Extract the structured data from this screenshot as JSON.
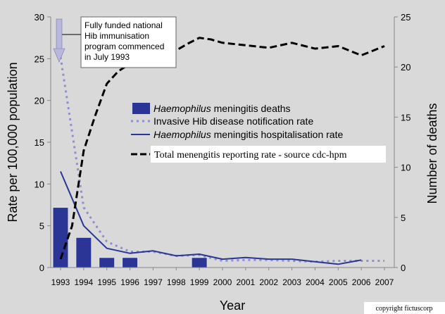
{
  "chart_data": {
    "type": "bar",
    "title": "",
    "xlabel": "Year",
    "ylabel_left": "Rate per 100,000 population",
    "ylabel_right": "Number of deaths",
    "ylim_left": [
      0,
      30
    ],
    "ylim_right": [
      0,
      25
    ],
    "yticks_left": [
      "0",
      "5",
      "10",
      "15",
      "20",
      "25",
      "30"
    ],
    "yticks_right": [
      "0",
      "5",
      "10",
      "15",
      "20",
      "25"
    ],
    "categories": [
      "1993",
      "1994",
      "1995",
      "1996",
      "1997",
      "1998",
      "1999",
      "2000",
      "2001",
      "2002",
      "2003",
      "2004",
      "2005",
      "2006",
      "2007"
    ],
    "grid": false,
    "legend_placement": "center-right",
    "annotation": [
      "Fully funded national",
      "Hib immunisation",
      "program commenced",
      "in July 1993"
    ],
    "copyright": "copyright fictuscorp",
    "series": [
      {
        "name": "Haemophilus meningitis deaths",
        "name_italic": "Haemophilus",
        "name_rest": " meningitis deaths",
        "kind": "bar",
        "axis": "right",
        "color": "#2b3596",
        "x": [
          "1993",
          "1994",
          "1995",
          "1996",
          "1999"
        ],
        "values": [
          6,
          3,
          1,
          1,
          1
        ]
      },
      {
        "name": "Invasive Hib disease notification rate",
        "kind": "line-dotted",
        "axis": "left",
        "color": "#8f8fd0",
        "x": [
          1993,
          1994,
          1995,
          1996,
          1997,
          1998,
          1999,
          2000,
          2001,
          2002,
          2003,
          2004,
          2005,
          2006,
          2007
        ],
        "values": [
          25.2,
          7.2,
          3.1,
          1.9,
          1.9,
          1.4,
          1.5,
          0.8,
          0.9,
          0.9,
          0.8,
          0.7,
          0.8,
          0.8,
          0.8
        ]
      },
      {
        "name": "Haemophilus meningitis hospitalisation rate",
        "name_italic": "Haemophilus",
        "name_rest": " meningitis hospitalisation rate",
        "kind": "line",
        "axis": "left",
        "color": "#2b3596",
        "x": [
          1993,
          1994,
          1995,
          1996,
          1997,
          1998,
          1999,
          2000,
          2001,
          2002,
          2003,
          2004,
          2005,
          2006
        ],
        "values": [
          11.5,
          5.0,
          2.3,
          1.7,
          2.0,
          1.4,
          1.6,
          1.0,
          1.2,
          1.0,
          1.0,
          0.7,
          0.4,
          0.9
        ]
      },
      {
        "name": "Total menengitis reporting rate - source cdc-hpm",
        "kind": "line-dashed",
        "axis": "left",
        "color": "#000000",
        "x": [
          1993,
          1993.5,
          1994,
          1994.5,
          1995,
          1995.5,
          1996,
          1997,
          1998,
          1998.5,
          1999,
          1999.5,
          2000,
          2001,
          2002,
          2003,
          2004,
          2005,
          2006,
          2007
        ],
        "values": [
          1.0,
          5.0,
          14.0,
          18.2,
          22.0,
          23.5,
          24.4,
          25.0,
          26.0,
          26.8,
          27.5,
          27.3,
          26.9,
          26.6,
          26.3,
          26.9,
          26.2,
          26.5,
          25.4,
          26.5
        ]
      }
    ]
  }
}
